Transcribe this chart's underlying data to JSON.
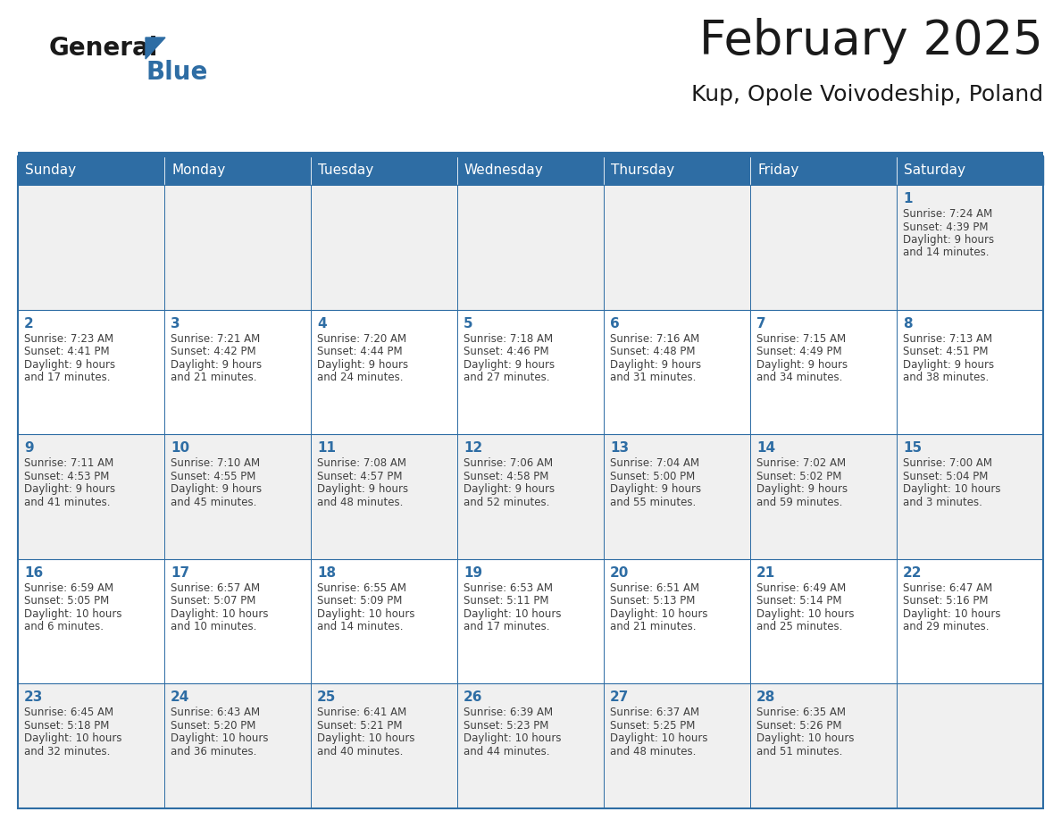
{
  "title": "February 2025",
  "subtitle": "Kup, Opole Voivodeship, Poland",
  "days_of_week": [
    "Sunday",
    "Monday",
    "Tuesday",
    "Wednesday",
    "Thursday",
    "Friday",
    "Saturday"
  ],
  "header_bg": "#2E6DA4",
  "header_text": "#FFFFFF",
  "cell_bg_odd": "#F0F0F0",
  "cell_bg_even": "#FFFFFF",
  "border_color": "#2E6DA4",
  "day_num_color": "#2E6DA4",
  "cell_text_color": "#404040",
  "title_color": "#1a1a1a",
  "subtitle_color": "#1a1a1a",
  "logo_general_color": "#1a1a1a",
  "logo_blue_color": "#2E6DA4",
  "calendar_data": [
    [
      {
        "day": null,
        "info": ""
      },
      {
        "day": null,
        "info": ""
      },
      {
        "day": null,
        "info": ""
      },
      {
        "day": null,
        "info": ""
      },
      {
        "day": null,
        "info": ""
      },
      {
        "day": null,
        "info": ""
      },
      {
        "day": 1,
        "info": "Sunrise: 7:24 AM\nSunset: 4:39 PM\nDaylight: 9 hours\nand 14 minutes."
      }
    ],
    [
      {
        "day": 2,
        "info": "Sunrise: 7:23 AM\nSunset: 4:41 PM\nDaylight: 9 hours\nand 17 minutes."
      },
      {
        "day": 3,
        "info": "Sunrise: 7:21 AM\nSunset: 4:42 PM\nDaylight: 9 hours\nand 21 minutes."
      },
      {
        "day": 4,
        "info": "Sunrise: 7:20 AM\nSunset: 4:44 PM\nDaylight: 9 hours\nand 24 minutes."
      },
      {
        "day": 5,
        "info": "Sunrise: 7:18 AM\nSunset: 4:46 PM\nDaylight: 9 hours\nand 27 minutes."
      },
      {
        "day": 6,
        "info": "Sunrise: 7:16 AM\nSunset: 4:48 PM\nDaylight: 9 hours\nand 31 minutes."
      },
      {
        "day": 7,
        "info": "Sunrise: 7:15 AM\nSunset: 4:49 PM\nDaylight: 9 hours\nand 34 minutes."
      },
      {
        "day": 8,
        "info": "Sunrise: 7:13 AM\nSunset: 4:51 PM\nDaylight: 9 hours\nand 38 minutes."
      }
    ],
    [
      {
        "day": 9,
        "info": "Sunrise: 7:11 AM\nSunset: 4:53 PM\nDaylight: 9 hours\nand 41 minutes."
      },
      {
        "day": 10,
        "info": "Sunrise: 7:10 AM\nSunset: 4:55 PM\nDaylight: 9 hours\nand 45 minutes."
      },
      {
        "day": 11,
        "info": "Sunrise: 7:08 AM\nSunset: 4:57 PM\nDaylight: 9 hours\nand 48 minutes."
      },
      {
        "day": 12,
        "info": "Sunrise: 7:06 AM\nSunset: 4:58 PM\nDaylight: 9 hours\nand 52 minutes."
      },
      {
        "day": 13,
        "info": "Sunrise: 7:04 AM\nSunset: 5:00 PM\nDaylight: 9 hours\nand 55 minutes."
      },
      {
        "day": 14,
        "info": "Sunrise: 7:02 AM\nSunset: 5:02 PM\nDaylight: 9 hours\nand 59 minutes."
      },
      {
        "day": 15,
        "info": "Sunrise: 7:00 AM\nSunset: 5:04 PM\nDaylight: 10 hours\nand 3 minutes."
      }
    ],
    [
      {
        "day": 16,
        "info": "Sunrise: 6:59 AM\nSunset: 5:05 PM\nDaylight: 10 hours\nand 6 minutes."
      },
      {
        "day": 17,
        "info": "Sunrise: 6:57 AM\nSunset: 5:07 PM\nDaylight: 10 hours\nand 10 minutes."
      },
      {
        "day": 18,
        "info": "Sunrise: 6:55 AM\nSunset: 5:09 PM\nDaylight: 10 hours\nand 14 minutes."
      },
      {
        "day": 19,
        "info": "Sunrise: 6:53 AM\nSunset: 5:11 PM\nDaylight: 10 hours\nand 17 minutes."
      },
      {
        "day": 20,
        "info": "Sunrise: 6:51 AM\nSunset: 5:13 PM\nDaylight: 10 hours\nand 21 minutes."
      },
      {
        "day": 21,
        "info": "Sunrise: 6:49 AM\nSunset: 5:14 PM\nDaylight: 10 hours\nand 25 minutes."
      },
      {
        "day": 22,
        "info": "Sunrise: 6:47 AM\nSunset: 5:16 PM\nDaylight: 10 hours\nand 29 minutes."
      }
    ],
    [
      {
        "day": 23,
        "info": "Sunrise: 6:45 AM\nSunset: 5:18 PM\nDaylight: 10 hours\nand 32 minutes."
      },
      {
        "day": 24,
        "info": "Sunrise: 6:43 AM\nSunset: 5:20 PM\nDaylight: 10 hours\nand 36 minutes."
      },
      {
        "day": 25,
        "info": "Sunrise: 6:41 AM\nSunset: 5:21 PM\nDaylight: 10 hours\nand 40 minutes."
      },
      {
        "day": 26,
        "info": "Sunrise: 6:39 AM\nSunset: 5:23 PM\nDaylight: 10 hours\nand 44 minutes."
      },
      {
        "day": 27,
        "info": "Sunrise: 6:37 AM\nSunset: 5:25 PM\nDaylight: 10 hours\nand 48 minutes."
      },
      {
        "day": 28,
        "info": "Sunrise: 6:35 AM\nSunset: 5:26 PM\nDaylight: 10 hours\nand 51 minutes."
      },
      {
        "day": null,
        "info": ""
      }
    ]
  ]
}
